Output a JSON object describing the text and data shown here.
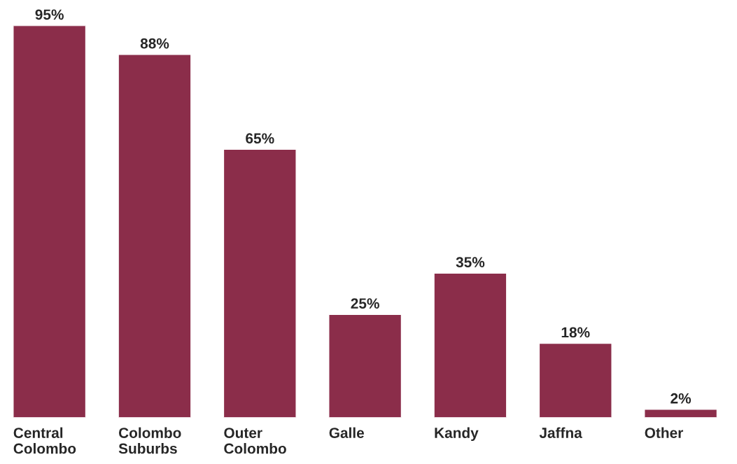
{
  "chart_data": {
    "type": "bar",
    "categories": [
      "Central\nColombo",
      "Colombo\nSuburbs",
      "Outer\nColombo",
      "Galle",
      "Kandy",
      "Jaffna",
      "Other"
    ],
    "values": [
      95,
      88,
      65,
      25,
      35,
      18,
      2
    ],
    "value_labels": [
      "95%",
      "88%",
      "65%",
      "25%",
      "35%",
      "18%",
      "2%"
    ],
    "color": "#8b2d4a",
    "grid": false,
    "legend": false
  }
}
